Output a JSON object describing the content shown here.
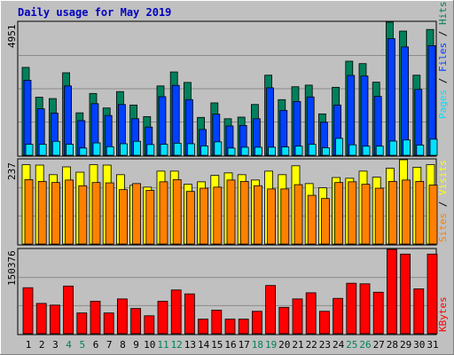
{
  "title": "Daily usage for May 2019",
  "colors": {
    "background": "#c0c0c0",
    "title": "#0000c0",
    "hits": "#00805c",
    "files": "#0040ff",
    "pages": "#00e0ff",
    "visits": "#ffff00",
    "sites": "#ff8000",
    "kbytes": "#ff0000",
    "weekend_day_label": "#00805c",
    "weekday_label": "#000000"
  },
  "chart_data": [
    {
      "type": "bar",
      "panel": "hits-files-pages",
      "ymax_label": "4951",
      "ylim": [
        0,
        4951
      ],
      "grid": true,
      "legend": {
        "text": [
          "Pages",
          " / ",
          "Files",
          " / ",
          "Hits"
        ],
        "placement": "right-vertical"
      },
      "categories": [
        "1",
        "2",
        "3",
        "4",
        "5",
        "6",
        "7",
        "8",
        "9",
        "10",
        "11",
        "12",
        "13",
        "14",
        "15",
        "16",
        "17",
        "18",
        "19",
        "20",
        "21",
        "22",
        "23",
        "24",
        "25",
        "26",
        "27",
        "28",
        "29",
        "30",
        "31"
      ],
      "series": [
        {
          "name": "Hits",
          "values": [
            3270,
            2160,
            2110,
            3070,
            1580,
            2300,
            1760,
            2370,
            1870,
            1440,
            2580,
            3100,
            2710,
            1410,
            1950,
            1360,
            1420,
            1890,
            2980,
            2070,
            2550,
            2610,
            1540,
            2530,
            3500,
            3410,
            2720,
            4951,
            4620,
            2980,
            4680
          ]
        },
        {
          "name": "Files",
          "values": [
            2790,
            1730,
            1570,
            2580,
            1290,
            1920,
            1480,
            1890,
            1360,
            1050,
            2180,
            2600,
            2070,
            960,
            1530,
            1090,
            1110,
            1360,
            2510,
            1670,
            2000,
            2170,
            1230,
            1870,
            2970,
            2950,
            2190,
            4340,
            4030,
            2450,
            4080
          ]
        },
        {
          "name": "Pages",
          "values": [
            410,
            410,
            520,
            410,
            270,
            460,
            320,
            430,
            520,
            400,
            410,
            450,
            430,
            350,
            500,
            270,
            300,
            300,
            300,
            310,
            340,
            410,
            280,
            630,
            390,
            340,
            340,
            530,
            570,
            380,
            600
          ]
        }
      ]
    },
    {
      "type": "bar",
      "panel": "visits-sites",
      "ymax_label": "237",
      "ylim": [
        0,
        237
      ],
      "grid": true,
      "legend": {
        "text": [
          "Sites",
          " / ",
          "Visits"
        ],
        "placement": "right-vertical"
      },
      "categories": [
        "1",
        "2",
        "3",
        "4",
        "5",
        "6",
        "7",
        "8",
        "9",
        "10",
        "11",
        "12",
        "13",
        "14",
        "15",
        "16",
        "17",
        "18",
        "19",
        "20",
        "21",
        "22",
        "23",
        "24",
        "25",
        "26",
        "27",
        "28",
        "29",
        "30",
        "31"
      ],
      "series": [
        {
          "name": "Visits",
          "values": [
            223,
            222,
            195,
            217,
            202,
            223,
            222,
            195,
            165,
            160,
            205,
            205,
            168,
            175,
            193,
            200,
            195,
            180,
            205,
            195,
            220,
            170,
            158,
            187,
            185,
            205,
            188,
            213,
            237,
            216,
            223
          ]
        },
        {
          "name": "Sites",
          "values": [
            181,
            176,
            173,
            180,
            164,
            173,
            172,
            153,
            170,
            151,
            175,
            181,
            148,
            157,
            160,
            180,
            176,
            164,
            155,
            155,
            167,
            137,
            128,
            173,
            175,
            168,
            157,
            176,
            180,
            176,
            166
          ]
        }
      ]
    },
    {
      "type": "bar",
      "panel": "kbytes",
      "ymax_label": "150376",
      "ylim": [
        0,
        150376
      ],
      "grid": true,
      "legend": {
        "text": [
          "KBytes"
        ],
        "placement": "right-vertical"
      },
      "categories": [
        "1",
        "2",
        "3",
        "4",
        "5",
        "6",
        "7",
        "8",
        "9",
        "10",
        "11",
        "12",
        "13",
        "14",
        "15",
        "16",
        "17",
        "18",
        "19",
        "20",
        "21",
        "22",
        "23",
        "24",
        "25",
        "26",
        "27",
        "28",
        "29",
        "30",
        "31"
      ],
      "series": [
        {
          "name": "KBytes",
          "values": [
            82000,
            54000,
            51000,
            85000,
            37000,
            58000,
            37000,
            62000,
            45000,
            32000,
            58000,
            78000,
            71000,
            26000,
            42000,
            26000,
            26000,
            40000,
            86000,
            47000,
            62000,
            73000,
            40000,
            63000,
            90000,
            89000,
            74000,
            150376,
            142000,
            80000,
            142000
          ]
        }
      ]
    }
  ],
  "x_axis": {
    "labels": [
      "1",
      "2",
      "3",
      "4",
      "5",
      "6",
      "7",
      "8",
      "9",
      "10",
      "11",
      "12",
      "13",
      "14",
      "15",
      "16",
      "17",
      "18",
      "19",
      "20",
      "21",
      "22",
      "23",
      "24",
      "25",
      "26",
      "27",
      "28",
      "29",
      "30",
      "31"
    ],
    "weekend_days": [
      4,
      5,
      11,
      12,
      18,
      19,
      25,
      26
    ]
  }
}
